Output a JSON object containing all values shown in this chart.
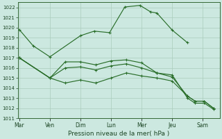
{
  "background_color": "#cce8e0",
  "grid_color": "#aaccbb",
  "line_color": "#2a6e2a",
  "marker_color": "#2a6e2a",
  "xlabel": "Pression niveau de la mer( hPa )",
  "ylim": [
    1011,
    1022.5
  ],
  "yticks": [
    1011,
    1012,
    1013,
    1014,
    1015,
    1016,
    1017,
    1018,
    1019,
    1020,
    1021,
    1022
  ],
  "day_labels": [
    "Mar",
    "Ven",
    "Dim",
    "Lun",
    "Mer",
    "Jeu",
    "Sam"
  ],
  "day_positions": [
    0,
    1,
    2,
    3,
    4,
    5,
    6
  ],
  "xlim": [
    -0.05,
    6.55
  ],
  "series1_x": [
    0,
    0.45,
    1.0,
    2.0,
    2.45,
    2.95,
    3.45,
    3.95,
    4.3,
    4.5,
    5.0,
    5.5
  ],
  "series1_y": [
    1019.8,
    1018.2,
    1017.1,
    1019.2,
    1019.65,
    1019.5,
    1022.05,
    1022.2,
    1021.55,
    1021.45,
    1019.75,
    1018.5
  ],
  "series2_x": [
    0,
    1.0,
    1.5,
    2.0,
    2.5,
    3.0,
    3.5,
    4.0,
    4.5,
    5.0,
    5.5,
    5.75,
    6.05,
    6.35
  ],
  "series2_y": [
    1017.0,
    1015.0,
    1016.6,
    1016.6,
    1016.3,
    1016.7,
    1016.8,
    1016.5,
    1015.5,
    1015.3,
    1013.0,
    1012.5,
    1012.5,
    1011.9
  ],
  "series3_x": [
    0,
    1.0,
    1.5,
    2.0,
    2.5,
    3.0,
    3.5,
    4.0,
    4.5,
    5.0,
    5.5,
    5.75,
    6.05,
    6.35
  ],
  "series3_y": [
    1017.0,
    1015.0,
    1016.0,
    1016.1,
    1015.8,
    1016.2,
    1016.4,
    1016.0,
    1015.5,
    1015.1,
    1013.2,
    1012.7,
    1012.7,
    1012.0
  ],
  "series4_x": [
    0,
    1.0,
    1.5,
    2.0,
    2.5,
    3.0,
    3.5,
    4.0,
    4.5,
    5.0,
    5.5,
    5.75,
    6.05,
    6.35
  ],
  "series4_y": [
    1017.0,
    1015.0,
    1014.5,
    1014.8,
    1014.5,
    1015.0,
    1015.5,
    1015.2,
    1015.0,
    1014.7,
    1013.2,
    1012.7,
    1012.7,
    1012.0
  ]
}
